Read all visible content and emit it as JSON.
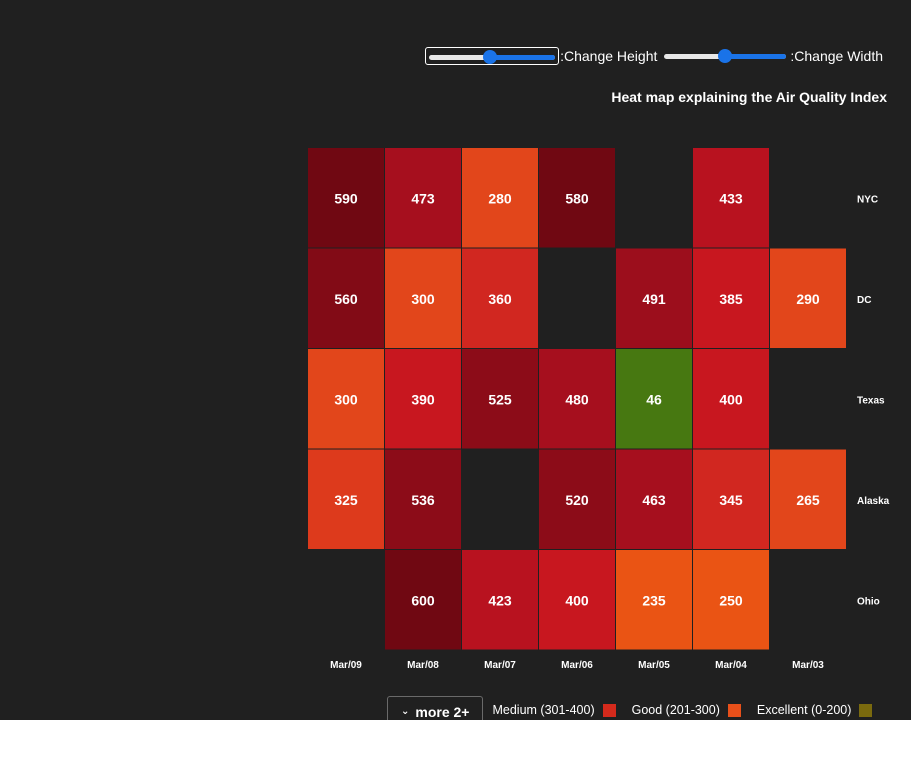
{
  "controls": {
    "height_label": ":Change Height",
    "width_label": ":Change Width",
    "height_value": 0.48,
    "width_value": 0.5
  },
  "legend": {
    "more_label": "more 2+",
    "items": [
      {
        "label": "Medium (301-400)",
        "color": "#d42a1c"
      },
      {
        "label": "Good (201-300)",
        "color": "#e8501a"
      },
      {
        "label": "Excellent (0-200)",
        "color": "#7a6a0e"
      }
    ]
  },
  "chart_data": {
    "type": "heatmap",
    "title": "Heat map explaining the Air Quality Index",
    "x_categories": [
      "Mar/09",
      "Mar/08",
      "Mar/07",
      "Mar/06",
      "Mar/05",
      "Mar/04",
      "Mar/03"
    ],
    "y_categories": [
      "NYC",
      "DC",
      "Texas",
      "Alaska",
      "Ohio"
    ],
    "values": [
      [
        590,
        473,
        280,
        580,
        null,
        433,
        null
      ],
      [
        560,
        300,
        360,
        null,
        491,
        385,
        290
      ],
      [
        300,
        390,
        525,
        480,
        46,
        400,
        null
      ],
      [
        325,
        536,
        null,
        520,
        463,
        345,
        265
      ],
      [
        null,
        600,
        423,
        400,
        235,
        250,
        null
      ]
    ],
    "legend_position": "bottom-right"
  }
}
